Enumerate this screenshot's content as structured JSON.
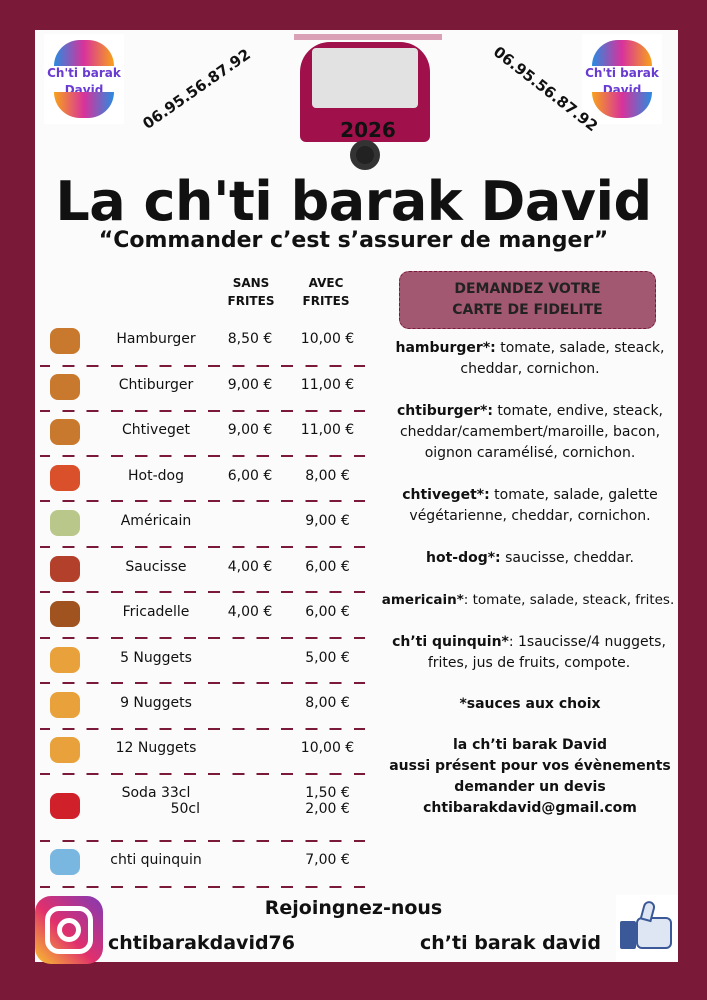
{
  "logo_text": "Ch'ti barak David",
  "phone": "06.95.56.87.92",
  "truck_year": "2026",
  "title": "La ch'ti barak David",
  "slogan": "“Commander c’est s’assurer de manger”",
  "headers": {
    "sans": "SANS FRITES",
    "avec": "AVEC FRITES"
  },
  "menu": [
    {
      "name": "Hamburger",
      "sans": "8,50 €",
      "avec": "10,00 €",
      "icon": "burger-icon"
    },
    {
      "name": "Chtiburger",
      "sans": "9,00 €",
      "avec": "11,00 €",
      "icon": "burger-icon"
    },
    {
      "name": "Chtiveget",
      "sans": "9,00 €",
      "avec": "11,00 €",
      "icon": "burger-icon"
    },
    {
      "name": "Hot-dog",
      "sans": "6,00 €",
      "avec": "8,00 €",
      "icon": "hotdog-icon"
    },
    {
      "name": "Américain",
      "sans": "",
      "avec": "9,00 €",
      "icon": "sandwich-icon"
    },
    {
      "name": "Saucisse",
      "sans": "4,00 €",
      "avec": "6,00 €",
      "icon": "sausage-icon"
    },
    {
      "name": "Fricadelle",
      "sans": "4,00 €",
      "avec": "6,00 €",
      "icon": "fricadelle-icon"
    },
    {
      "name": "5 Nuggets",
      "sans": "",
      "avec": "5,00 €",
      "icon": "nuggets-icon"
    },
    {
      "name": "9 Nuggets",
      "sans": "",
      "avec": "8,00 €",
      "icon": "nuggets-icon"
    },
    {
      "name": "12 Nuggets",
      "sans": "",
      "avec": "10,00 €",
      "icon": "nuggets-icon"
    },
    {
      "name": "Soda 33cl",
      "name2": "50cl",
      "sans": "",
      "avec": "1,50 €",
      "avec2": "2,00 €",
      "icon": "soda-can-icon"
    },
    {
      "name": "chti quinquin",
      "sans": "",
      "avec": "7,00 €",
      "icon": "kids-box-icon"
    }
  ],
  "fidelite": {
    "line1": "DEMANDEZ VOTRE",
    "line2": "CARTE DE FIDELITE"
  },
  "descriptions": [
    {
      "label": "hamburger*:",
      "text": " tomate, salade, steack, cheddar, cornichon."
    },
    {
      "label": "chtiburger*:",
      "text": " tomate, endive, steack, cheddar/camembert/maroille, bacon, oignon caramélisé, cornichon."
    },
    {
      "label": "chtiveget*:",
      "text": " tomate, salade, galette végétarienne, cheddar, cornichon."
    },
    {
      "label": "hot-dog*:",
      "text": " saucisse, cheddar."
    },
    {
      "label": "americain*",
      "text": ": tomate, salade, steack, frites."
    },
    {
      "label": "ch’ti quinquin*",
      "text": ": 1saucisse/4 nuggets, frites, jus de fruits, compote."
    }
  ],
  "sauces": "*sauces aux choix",
  "events": {
    "line1": "la ch’ti barak David",
    "line2": "aussi présent pour vos évènements",
    "line3": "demander un devis",
    "email": "chtibarakdavid@gmail.com"
  },
  "footer": {
    "join": "Rejoingnez-nous",
    "instagram": "chtibarakdavid76",
    "facebook": "ch’ti barak david"
  },
  "colors": {
    "border": "#7b1a38",
    "fidelite_bg": "#a35872"
  }
}
